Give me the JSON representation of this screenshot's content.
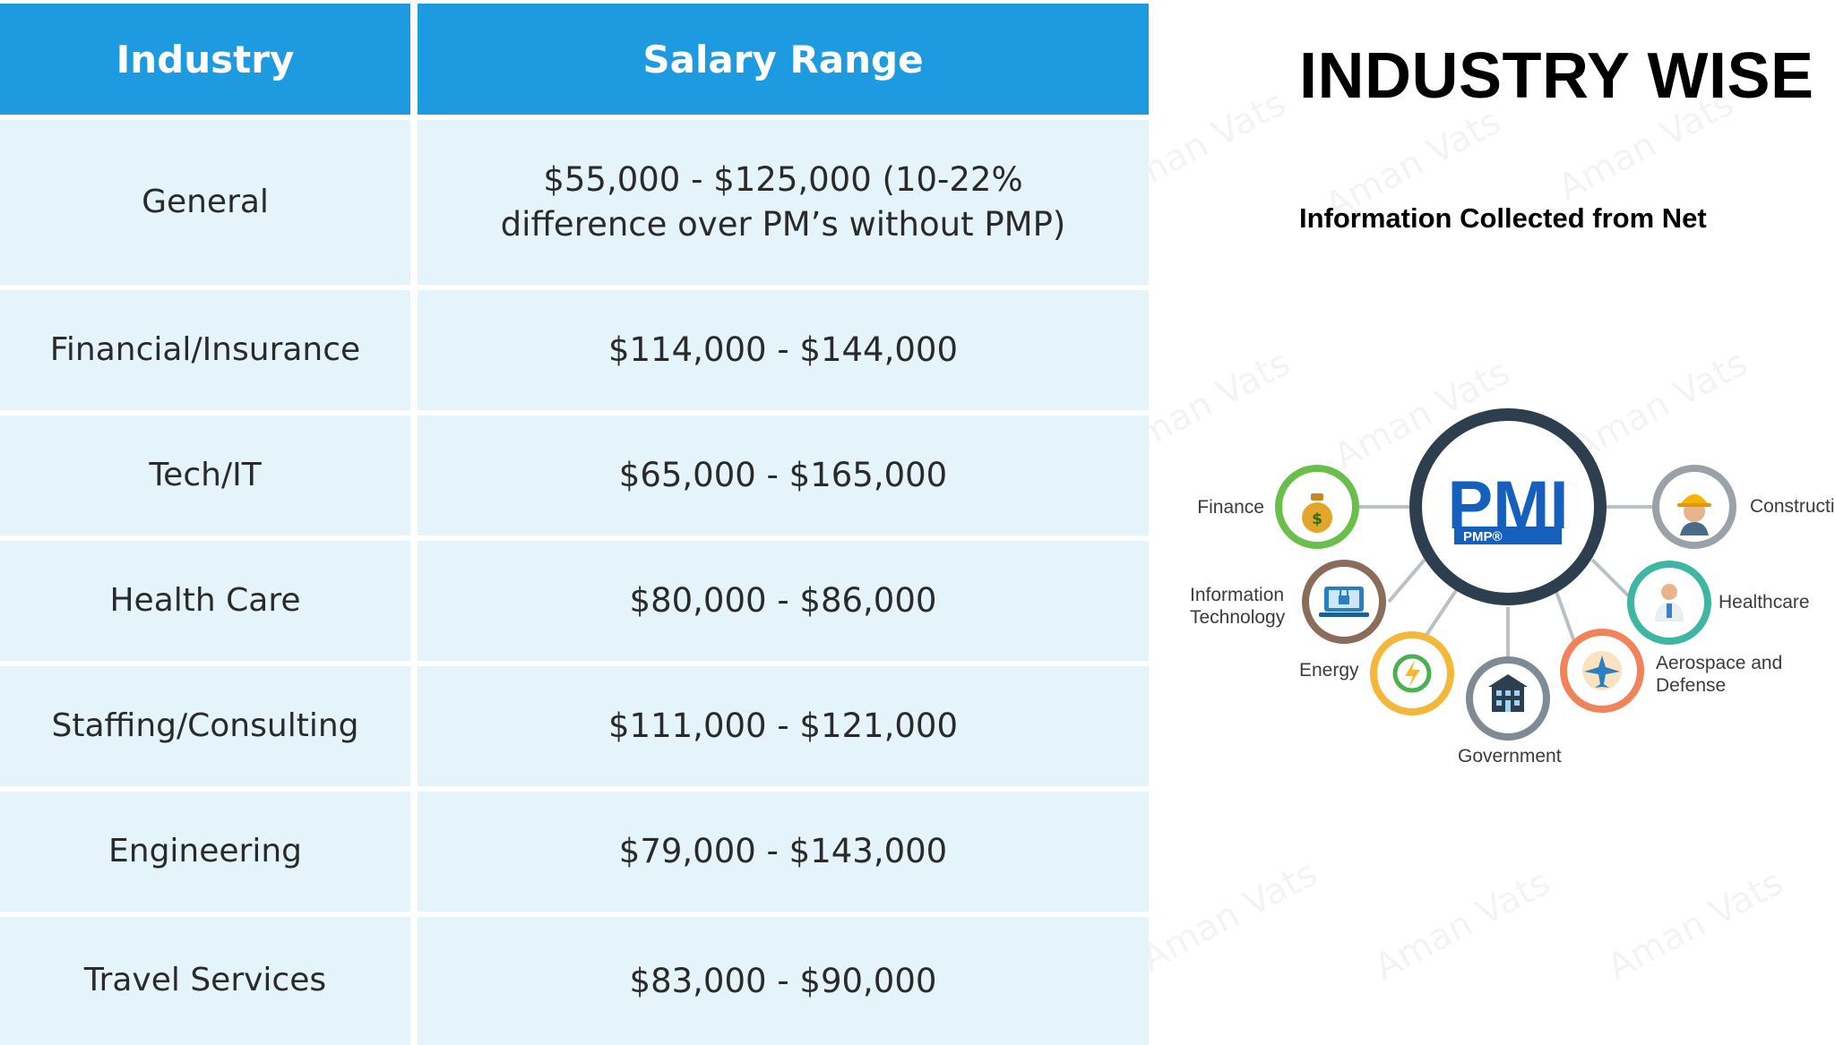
{
  "table": {
    "headers": {
      "industry": "Industry",
      "salary_range": "Salary Range"
    },
    "rows": [
      {
        "industry": "General",
        "range": "$55,000 - $125,000 (10-22% difference over PM’s without PMP)"
      },
      {
        "industry": "Financial/Insurance",
        "range": "$114,000 - $144,000"
      },
      {
        "industry": "Tech/IT",
        "range": "$65,000 - $165,000"
      },
      {
        "industry": "Health Care",
        "range": "$80,000 - $86,000"
      },
      {
        "industry": "Staffing/Consulting",
        "range": "$111,000 - $121,000"
      },
      {
        "industry": "Engineering",
        "range": "$79,000 - $143,000"
      },
      {
        "industry": "Travel Services",
        "range": "$83,000 - $90,000"
      }
    ]
  },
  "heading": {
    "title": "INDUSTRY WISE",
    "subtitle": "Information Collected from Net"
  },
  "diagram": {
    "hub": {
      "logo_text": "PMI",
      "badge": "PMP®"
    },
    "nodes": {
      "finance": "Finance",
      "information_technology": [
        "Information",
        "Technology"
      ],
      "energy": "Energy",
      "government": "Government",
      "aerospace": [
        "Aerospace and",
        "Defense"
      ],
      "healthcare": "Healthcare",
      "construction": "Constructi"
    },
    "icons": {
      "finance": "money-bag-icon",
      "information_technology": "laptop-lock-icon",
      "energy": "energy-recycle-icon",
      "government": "building-icon",
      "aerospace": "airplane-icon",
      "healthcare": "doctor-icon",
      "construction": "worker-helmet-icon"
    },
    "colors": {
      "hub_ring": "#2d3e4e",
      "brand_blue": "#1560bd",
      "finance": "#6abf4b",
      "information_technology": "#8b6b5a",
      "energy": "#f3b73a",
      "government": "#7f8a93",
      "aerospace": "#f0835a",
      "healthcare": "#3fb5a3",
      "construction": "#9aa1a8"
    }
  },
  "watermark": "Aman Vats"
}
